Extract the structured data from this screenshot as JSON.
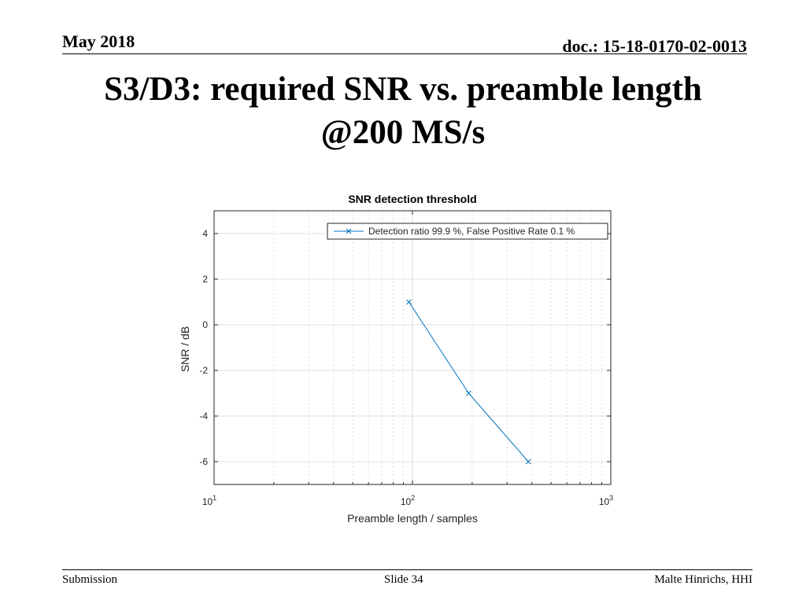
{
  "header": {
    "date": "May 2018",
    "doc": "doc.: 15-18-0170-02-0013"
  },
  "slide": {
    "title_line1": "S3/D3: required SNR vs. preamble length",
    "title_line2": "@200 MS/s"
  },
  "chart_data": {
    "type": "line",
    "title": "SNR detection threshold",
    "xlabel": "Preamble length / samples",
    "ylabel": "SNR / dB",
    "xscale": "log",
    "xlim": [
      10,
      1000
    ],
    "ylim": [
      -7,
      5
    ],
    "xticks": [
      10,
      100,
      1000
    ],
    "xtick_labels": [
      {
        "base": "10",
        "exp": "1"
      },
      {
        "base": "10",
        "exp": "2"
      },
      {
        "base": "10",
        "exp": "3"
      }
    ],
    "yticks": [
      4,
      2,
      0,
      -2,
      -4,
      -6
    ],
    "ytick_labels": [
      "4",
      "2",
      "0",
      "-2",
      "-4",
      "-6"
    ],
    "grid": true,
    "legend_position": "top-right",
    "series": [
      {
        "name": "Detection ratio 99.9 %, False Positive Rate 0.1 %",
        "marker": "x",
        "color": "#0072BD",
        "x": [
          96,
          192,
          384
        ],
        "y": [
          1,
          -3,
          -6
        ]
      }
    ]
  },
  "footer": {
    "left": "Submission",
    "center": "Slide 34",
    "right": "Malte Hinrichs, HHI"
  }
}
